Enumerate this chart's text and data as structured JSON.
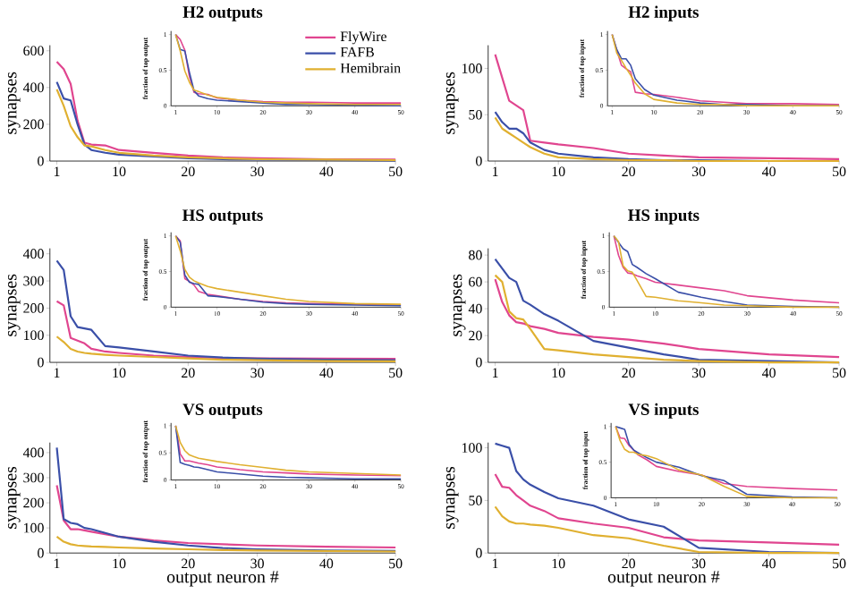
{
  "chart_data": [
    {
      "type": "line",
      "title": "H2 outputs",
      "ylabel": "synapses",
      "legend": "top right",
      "x": [
        1,
        2,
        3,
        4,
        5,
        6,
        8,
        10,
        15,
        20,
        25,
        30,
        40,
        50
      ],
      "xlim": [
        0,
        50
      ],
      "xticks": [
        1,
        10,
        20,
        30,
        40,
        50
      ],
      "ylim": [
        0,
        630
      ],
      "yticks": [
        0,
        200,
        400,
        600
      ],
      "series": [
        {
          "name": "FlyWire",
          "color": "#e0458f",
          "values": [
            540,
            500,
            420,
            220,
            100,
            90,
            85,
            60,
            45,
            30,
            20,
            15,
            10,
            8
          ]
        },
        {
          "name": "FAFB",
          "color": "#3a4fa8",
          "values": [
            430,
            340,
            330,
            200,
            90,
            60,
            45,
            35,
            25,
            15,
            10,
            8,
            5,
            3
          ]
        },
        {
          "name": "Hemibrain",
          "color": "#e0b030",
          "values": [
            390,
            300,
            190,
            130,
            85,
            80,
            60,
            45,
            30,
            20,
            15,
            10,
            8,
            5
          ]
        }
      ]
    },
    {
      "type": "line",
      "ylabel": "fraction of top output",
      "x": [
        1,
        2,
        3,
        4,
        5,
        6,
        8,
        10,
        15,
        20,
        25,
        30,
        40,
        50
      ],
      "xlim": [
        0,
        50
      ],
      "xticks": [
        1,
        10,
        20,
        30,
        40,
        50
      ],
      "ylim": [
        0,
        1.05
      ],
      "yticks": [
        0,
        0.5,
        1
      ],
      "series": [
        {
          "color": "#e0458f",
          "values": [
            1,
            0.93,
            0.78,
            0.41,
            0.19,
            0.17,
            0.16,
            0.11,
            0.08,
            0.06,
            0.05,
            0.05,
            0.04,
            0.04
          ]
        },
        {
          "color": "#3a4fa8",
          "values": [
            1,
            0.79,
            0.77,
            0.47,
            0.21,
            0.14,
            0.1,
            0.08,
            0.06,
            0.04,
            0.02,
            0.02,
            0.01,
            0
          ]
        },
        {
          "color": "#e0b030",
          "values": [
            1,
            0.77,
            0.49,
            0.33,
            0.22,
            0.2,
            0.15,
            0.12,
            0.08,
            0.05,
            0.04,
            0.03,
            0.02,
            0.02
          ]
        }
      ]
    },
    {
      "type": "line",
      "title": "H2 inputs",
      "ylabel": "synapses",
      "x": [
        1,
        2,
        3,
        4,
        5,
        6,
        8,
        10,
        15,
        20,
        25,
        30,
        40,
        50
      ],
      "xlim": [
        0,
        50
      ],
      "xticks": [
        1,
        10,
        20,
        30,
        40,
        50
      ],
      "ylim": [
        0,
        125
      ],
      "yticks": [
        0,
        50,
        100
      ],
      "series": [
        {
          "color": "#e0458f",
          "values": [
            115,
            90,
            65,
            60,
            55,
            22,
            20,
            18,
            14,
            8,
            6,
            4,
            3,
            2
          ]
        },
        {
          "color": "#3a4fa8",
          "values": [
            53,
            42,
            35,
            35,
            30,
            20,
            12,
            8,
            4,
            2,
            1,
            1,
            0,
            0
          ]
        },
        {
          "color": "#e0b030",
          "values": [
            47,
            35,
            30,
            25,
            20,
            15,
            8,
            4,
            2,
            1,
            1,
            0,
            0,
            0
          ]
        }
      ]
    },
    {
      "type": "line",
      "ylabel": "fraction of top input",
      "x": [
        1,
        2,
        3,
        4,
        5,
        6,
        8,
        10,
        15,
        20,
        25,
        30,
        40,
        50
      ],
      "xlim": [
        0,
        50
      ],
      "xticks": [
        1,
        10,
        20,
        30,
        40,
        50
      ],
      "ylim": [
        0,
        1.05
      ],
      "yticks": [
        0,
        0.5,
        1
      ],
      "series": [
        {
          "color": "#e0458f",
          "values": [
            1,
            0.78,
            0.57,
            0.52,
            0.48,
            0.19,
            0.17,
            0.16,
            0.12,
            0.07,
            0.05,
            0.03,
            0.03,
            0.02
          ]
        },
        {
          "color": "#3a4fa8",
          "values": [
            1,
            0.79,
            0.66,
            0.66,
            0.57,
            0.38,
            0.23,
            0.15,
            0.08,
            0.04,
            0.02,
            0.02,
            0,
            0
          ]
        },
        {
          "color": "#e0b030",
          "values": [
            1,
            0.74,
            0.64,
            0.53,
            0.43,
            0.32,
            0.17,
            0.09,
            0.04,
            0.02,
            0.02,
            0,
            0,
            0
          ]
        }
      ]
    },
    {
      "type": "line",
      "title": "HS outputs",
      "ylabel": "synapses",
      "x": [
        1,
        2,
        3,
        4,
        5,
        6,
        8,
        10,
        15,
        20,
        25,
        30,
        40,
        50
      ],
      "xlim": [
        0,
        50
      ],
      "xticks": [
        1,
        10,
        20,
        30,
        40,
        50
      ],
      "ylim": [
        0,
        420
      ],
      "yticks": [
        0,
        100,
        200,
        300,
        400
      ],
      "series": [
        {
          "color": "#e0458f",
          "values": [
            225,
            210,
            90,
            80,
            70,
            50,
            40,
            35,
            25,
            20,
            16,
            15,
            14,
            13
          ]
        },
        {
          "color": "#3a4fa8",
          "values": [
            375,
            340,
            170,
            130,
            125,
            120,
            60,
            55,
            40,
            25,
            18,
            14,
            10,
            8
          ]
        },
        {
          "color": "#e0b030",
          "values": [
            95,
            75,
            50,
            40,
            35,
            32,
            28,
            25,
            20,
            15,
            10,
            8,
            5,
            4
          ]
        }
      ]
    },
    {
      "type": "line",
      "ylabel": "fraction of top output",
      "x": [
        1,
        2,
        3,
        4,
        5,
        6,
        8,
        10,
        15,
        20,
        25,
        30,
        40,
        50
      ],
      "xlim": [
        0,
        50
      ],
      "xticks": [
        1,
        10,
        20,
        30,
        40,
        50
      ],
      "ylim": [
        0,
        1.05
      ],
      "yticks": [
        0,
        0.5,
        1
      ],
      "series": [
        {
          "color": "#e0458f",
          "values": [
            1,
            0.93,
            0.4,
            0.36,
            0.31,
            0.22,
            0.18,
            0.16,
            0.11,
            0.08,
            0.06,
            0.05,
            0.04,
            0.03
          ]
        },
        {
          "color": "#3a4fa8",
          "values": [
            1,
            0.91,
            0.45,
            0.35,
            0.33,
            0.32,
            0.16,
            0.15,
            0.11,
            0.07,
            0.05,
            0.04,
            0.03,
            0.02
          ]
        },
        {
          "color": "#e0b030",
          "values": [
            1,
            0.79,
            0.53,
            0.42,
            0.37,
            0.34,
            0.29,
            0.26,
            0.21,
            0.16,
            0.11,
            0.08,
            0.05,
            0.04
          ]
        }
      ]
    },
    {
      "type": "line",
      "title": "HS inputs",
      "ylabel": "synapses",
      "x": [
        1,
        2,
        3,
        4,
        5,
        6,
        8,
        10,
        15,
        20,
        25,
        30,
        40,
        50
      ],
      "xlim": [
        0,
        50
      ],
      "xticks": [
        1,
        10,
        20,
        30,
        40,
        50
      ],
      "ylim": [
        0,
        85
      ],
      "yticks": [
        0,
        20,
        40,
        60,
        80
      ],
      "series": [
        {
          "color": "#e0458f",
          "values": [
            62,
            45,
            35,
            30,
            29,
            27,
            25,
            22,
            19,
            17,
            14,
            10,
            6,
            4
          ]
        },
        {
          "color": "#3a4fa8",
          "values": [
            77,
            70,
            63,
            60,
            46,
            43,
            36,
            31,
            16,
            11,
            6,
            2,
            1,
            0
          ]
        },
        {
          "color": "#e0b030",
          "values": [
            65,
            60,
            38,
            33,
            32,
            25,
            10,
            9,
            6,
            4,
            2,
            1,
            0,
            0
          ]
        }
      ]
    },
    {
      "type": "line",
      "ylabel": "fraction of top input",
      "x": [
        1,
        2,
        3,
        4,
        5,
        6,
        8,
        10,
        15,
        20,
        25,
        30,
        40,
        50
      ],
      "xlim": [
        0,
        50
      ],
      "xticks": [
        1,
        10,
        20,
        30,
        40,
        50
      ],
      "ylim": [
        0,
        1.05
      ],
      "yticks": [
        0,
        0.5,
        1
      ],
      "series": [
        {
          "color": "#e0458f",
          "values": [
            1,
            0.73,
            0.56,
            0.48,
            0.47,
            0.44,
            0.4,
            0.35,
            0.31,
            0.27,
            0.23,
            0.16,
            0.1,
            0.06
          ]
        },
        {
          "color": "#3a4fa8",
          "values": [
            1,
            0.91,
            0.82,
            0.78,
            0.6,
            0.56,
            0.47,
            0.4,
            0.21,
            0.14,
            0.08,
            0.03,
            0.01,
            0
          ]
        },
        {
          "color": "#e0b030",
          "values": [
            1,
            0.92,
            0.58,
            0.51,
            0.49,
            0.38,
            0.15,
            0.14,
            0.09,
            0.06,
            0.03,
            0.02,
            0,
            0
          ]
        }
      ]
    },
    {
      "type": "line",
      "title": "VS outputs",
      "xlabel": "output neuron #",
      "ylabel": "synapses",
      "x": [
        1,
        2,
        3,
        4,
        5,
        6,
        8,
        10,
        15,
        20,
        25,
        30,
        40,
        50
      ],
      "xlim": [
        0,
        50
      ],
      "xticks": [
        1,
        10,
        20,
        30,
        40,
        50
      ],
      "ylim": [
        0,
        440
      ],
      "yticks": [
        0,
        100,
        200,
        300,
        400
      ],
      "series": [
        {
          "color": "#e0458f",
          "values": [
            270,
            130,
            95,
            95,
            90,
            85,
            75,
            65,
            50,
            40,
            35,
            30,
            25,
            22
          ]
        },
        {
          "color": "#3a4fa8",
          "values": [
            420,
            135,
            120,
            115,
            100,
            95,
            80,
            65,
            45,
            30,
            20,
            15,
            10,
            8
          ]
        },
        {
          "color": "#e0b030",
          "values": [
            65,
            45,
            35,
            30,
            28,
            26,
            24,
            22,
            18,
            15,
            12,
            10,
            8,
            6
          ]
        }
      ]
    },
    {
      "type": "line",
      "ylabel": "fraction of top output",
      "x": [
        1,
        2,
        3,
        4,
        5,
        6,
        8,
        10,
        15,
        20,
        25,
        30,
        40,
        50
      ],
      "xlim": [
        0,
        50
      ],
      "xticks": [
        1,
        10,
        20,
        30,
        40,
        50
      ],
      "ylim": [
        0,
        1.05
      ],
      "yticks": [
        0,
        0.5,
        1
      ],
      "series": [
        {
          "color": "#e0458f",
          "values": [
            1,
            0.48,
            0.35,
            0.35,
            0.33,
            0.31,
            0.28,
            0.24,
            0.19,
            0.15,
            0.13,
            0.11,
            0.09,
            0.08
          ]
        },
        {
          "color": "#3a4fa8",
          "values": [
            1,
            0.32,
            0.29,
            0.27,
            0.24,
            0.23,
            0.19,
            0.15,
            0.11,
            0.07,
            0.05,
            0.04,
            0.02,
            0.02
          ]
        },
        {
          "color": "#e0b030",
          "values": [
            1,
            0.69,
            0.54,
            0.46,
            0.43,
            0.4,
            0.37,
            0.34,
            0.28,
            0.23,
            0.18,
            0.15,
            0.12,
            0.09
          ]
        }
      ]
    },
    {
      "type": "line",
      "title": "VS inputs",
      "xlabel": "output neuron #",
      "ylabel": "synapses",
      "x": [
        1,
        2,
        3,
        4,
        5,
        6,
        8,
        10,
        15,
        20,
        25,
        30,
        40,
        50
      ],
      "xlim": [
        0,
        50
      ],
      "xticks": [
        1,
        10,
        20,
        30,
        40,
        50
      ],
      "ylim": [
        0,
        105
      ],
      "yticks": [
        0,
        50,
        100
      ],
      "series": [
        {
          "color": "#e0458f",
          "values": [
            75,
            63,
            62,
            55,
            50,
            45,
            40,
            33,
            28,
            24,
            15,
            12,
            10,
            8
          ]
        },
        {
          "color": "#3a4fa8",
          "values": [
            104,
            102,
            100,
            78,
            70,
            65,
            58,
            52,
            45,
            32,
            25,
            5,
            1,
            0
          ]
        },
        {
          "color": "#e0b030",
          "values": [
            44,
            35,
            30,
            28,
            28,
            27,
            26,
            24,
            17,
            14,
            7,
            1,
            0,
            0
          ]
        }
      ]
    },
    {
      "type": "line",
      "ylabel": "fraction of top input",
      "x": [
        1,
        2,
        3,
        4,
        5,
        6,
        8,
        10,
        15,
        20,
        25,
        30,
        40,
        50
      ],
      "xlim": [
        0,
        50
      ],
      "xticks": [
        1,
        10,
        20,
        30,
        40,
        50
      ],
      "ylim": [
        0,
        1.05
      ],
      "yticks": [
        0,
        0.5,
        1
      ],
      "series": [
        {
          "color": "#e0458f",
          "values": [
            1,
            0.84,
            0.83,
            0.73,
            0.67,
            0.6,
            0.53,
            0.44,
            0.37,
            0.32,
            0.2,
            0.16,
            0.13,
            0.11
          ]
        },
        {
          "color": "#3a4fa8",
          "values": [
            1,
            0.98,
            0.96,
            0.75,
            0.67,
            0.63,
            0.56,
            0.5,
            0.43,
            0.31,
            0.24,
            0.05,
            0.01,
            0
          ]
        },
        {
          "color": "#e0b030",
          "values": [
            1,
            0.8,
            0.68,
            0.64,
            0.64,
            0.61,
            0.59,
            0.55,
            0.39,
            0.32,
            0.16,
            0.02,
            0,
            0
          ]
        }
      ]
    }
  ]
}
